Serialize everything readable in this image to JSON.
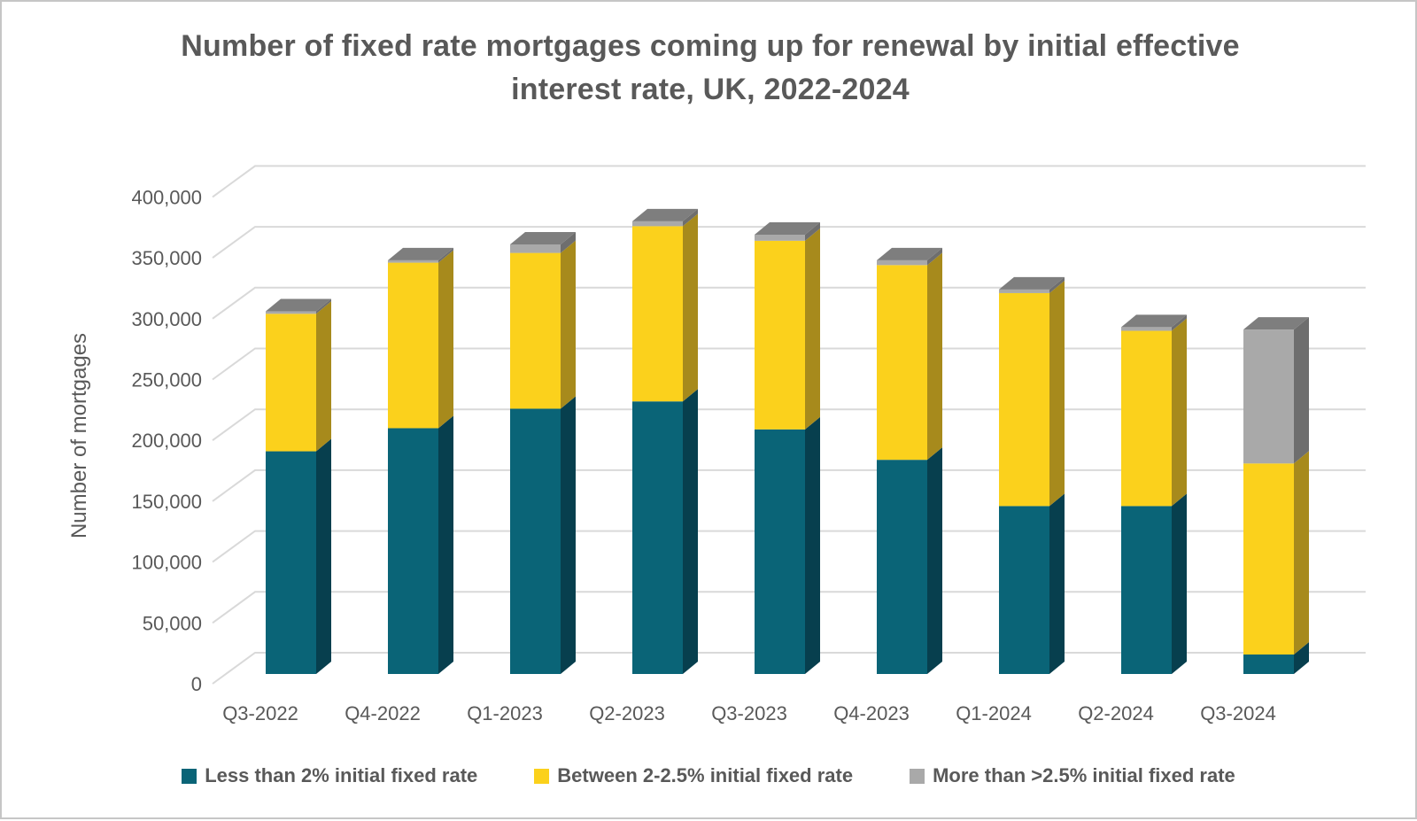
{
  "title": "Number of fixed rate mortgages coming up for renewal by initial effective interest rate, UK, 2022-2024",
  "y_axis": {
    "title": "Number of mortgages",
    "tick_labels": [
      "0",
      "50,000",
      "100,000",
      "150,000",
      "200,000",
      "250,000",
      "300,000",
      "350,000",
      "400,000"
    ]
  },
  "x_axis": {
    "categories": [
      "Q3-2022",
      "Q4-2022",
      "Q1-2023",
      "Q2-2023",
      "Q3-2023",
      "Q4-2023",
      "Q1-2024",
      "Q2-2024",
      "Q3-2024"
    ]
  },
  "legend": [
    {
      "label": "Less than 2% initial fixed rate",
      "color": "#0a6477"
    },
    {
      "label": "Between 2-2.5% initial fixed rate",
      "color": "#fbd11c"
    },
    {
      "label": "More than >2.5% initial fixed rate",
      "color": "#a9a9a9"
    }
  ],
  "colors": {
    "text": "#595959",
    "gridline": "#d9d9d9",
    "teal_front": "#0a6477",
    "teal_side": "#073f4e",
    "yellow_front": "#fbd11c",
    "yellow_side": "#a78a1c",
    "gray_front": "#a9a9a9",
    "gray_side": "#6e6e6e",
    "gray_top": "#7e7e7e"
  },
  "chart_data": {
    "type": "bar",
    "stacked": true,
    "projection": "3d-oblique",
    "title": "Number of fixed rate mortgages coming up for renewal by initial effective interest rate, UK, 2022-2024",
    "xlabel": "",
    "ylabel": "Number of mortgages",
    "ylim": [
      0,
      400000
    ],
    "ytick_step": 50000,
    "grid": true,
    "legend_position": "bottom",
    "categories": [
      "Q3-2022",
      "Q4-2022",
      "Q1-2023",
      "Q2-2023",
      "Q3-2023",
      "Q4-2023",
      "Q1-2024",
      "Q2-2024",
      "Q3-2024"
    ],
    "series": [
      {
        "name": "Less than 2% initial fixed rate",
        "values": [
          183000,
          202000,
          218000,
          224000,
          201000,
          176000,
          138000,
          138000,
          16000
        ]
      },
      {
        "name": "Between 2-2.5% initial fixed rate",
        "values": [
          113000,
          136000,
          128000,
          144000,
          155000,
          160000,
          175000,
          144000,
          157000
        ]
      },
      {
        "name": "More than >2.5% initial fixed rate",
        "values": [
          2000,
          2000,
          7000,
          4000,
          5000,
          4000,
          3000,
          3000,
          110000
        ]
      }
    ],
    "totals": [
      298000,
      340000,
      353000,
      372000,
      361000,
      340000,
      316000,
      285000,
      283000
    ]
  }
}
